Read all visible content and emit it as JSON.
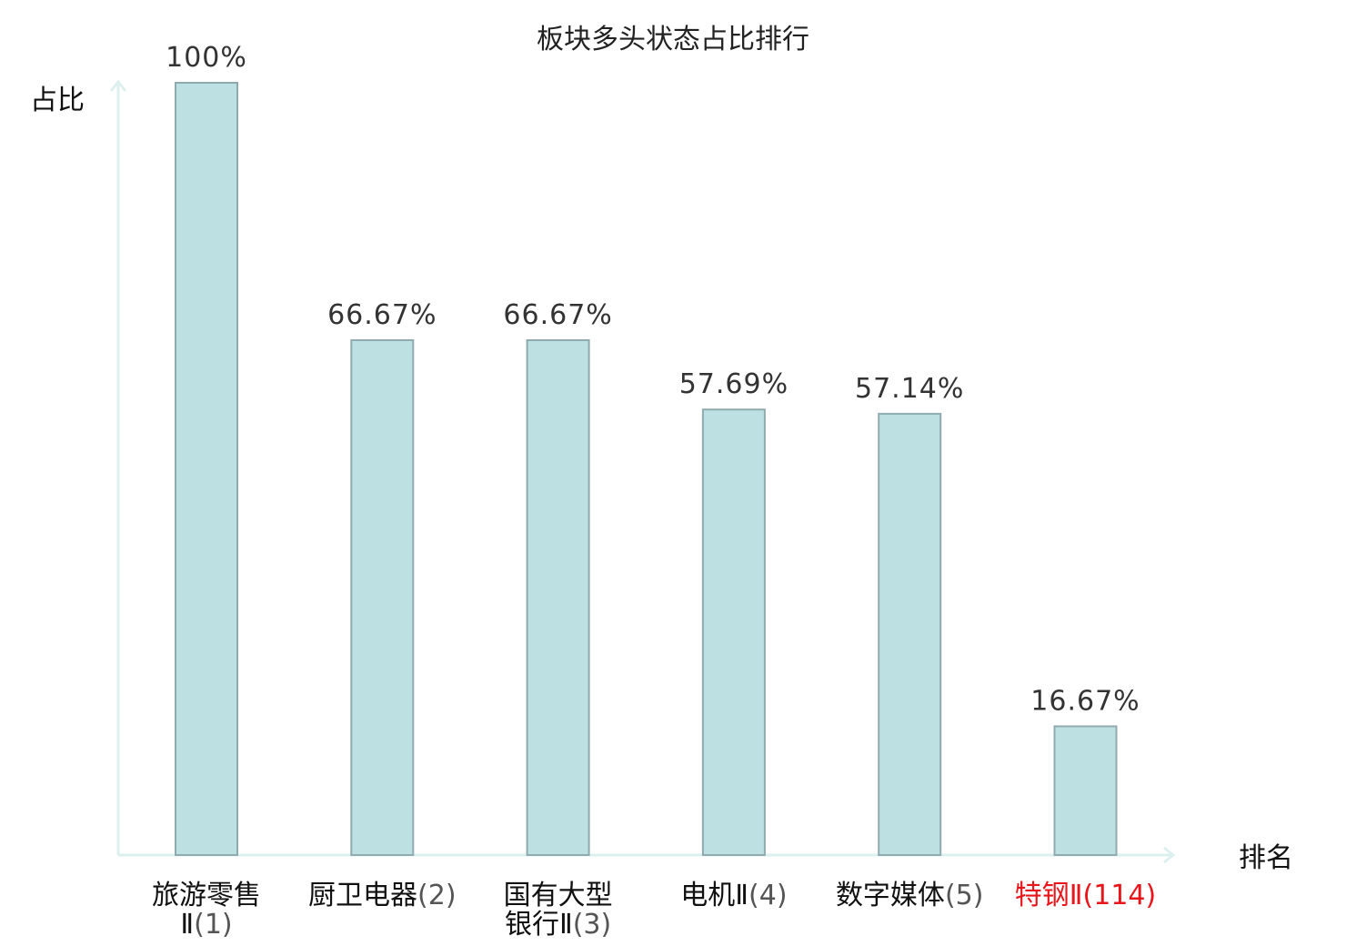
{
  "chart_data": {
    "type": "bar",
    "title": "板块多头状态占比排行",
    "xlabel": "排名",
    "ylabel": "占比",
    "ylim": [
      0,
      100
    ],
    "grid": false,
    "legend": "none",
    "categories": [
      {
        "name_lines": [
          "旅游零售",
          "Ⅱ"
        ],
        "rank": "(1)"
      },
      {
        "name_lines": [
          "厨卫电器"
        ],
        "rank": "(2)"
      },
      {
        "name_lines": [
          "国有大型",
          "银行Ⅱ"
        ],
        "rank": "(3)"
      },
      {
        "name_lines": [
          "电机Ⅱ"
        ],
        "rank": "(4)"
      },
      {
        "name_lines": [
          "数字媒体"
        ],
        "rank": "(5)"
      },
      {
        "name_lines": [
          "特钢Ⅱ"
        ],
        "rank": "(114)",
        "highlight": true
      }
    ],
    "values": [
      100,
      66.67,
      66.67,
      57.69,
      57.14,
      16.67
    ],
    "value_labels": [
      "100%",
      "66.67%",
      "66.67%",
      "57.69%",
      "57.14%",
      "16.67%"
    ]
  },
  "colors": {
    "bar_fill": "#bde0e3",
    "bar_stroke": "#8fabb0",
    "axis": "#dcf0ee",
    "label_text": "#111111",
    "rank_text": "#555555",
    "highlight_text": "#e8161b"
  }
}
